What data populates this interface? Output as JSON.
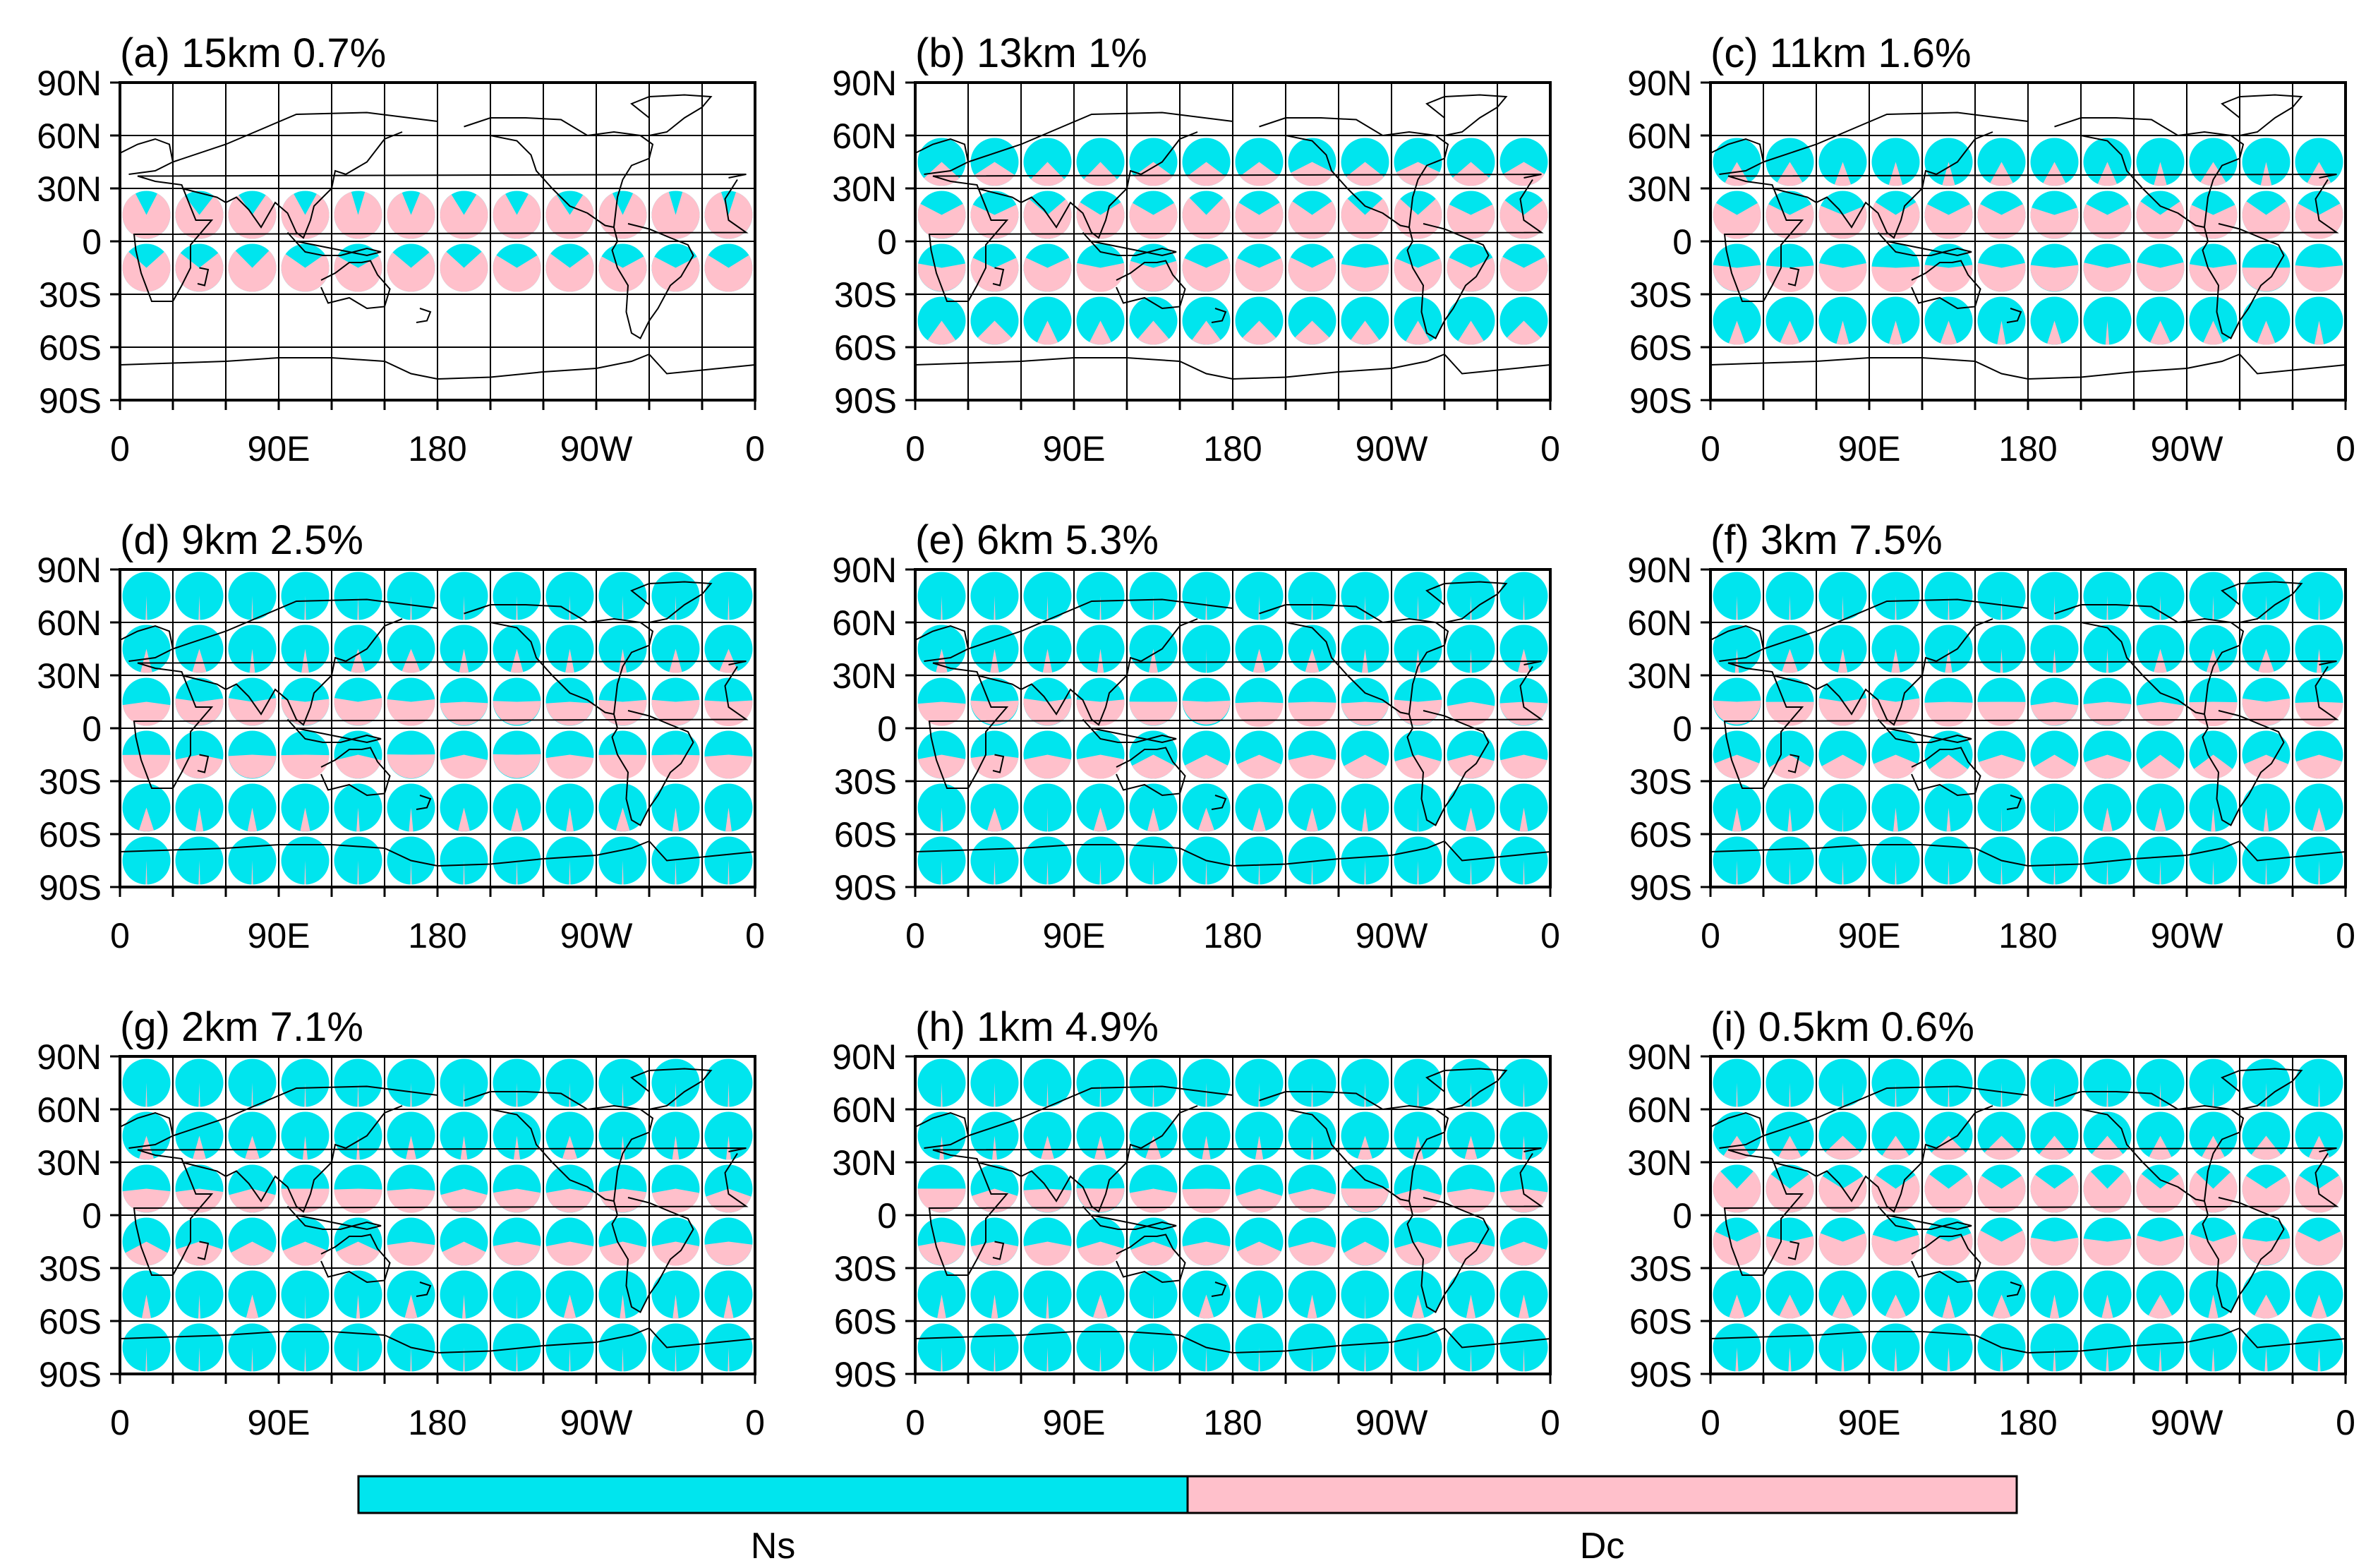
{
  "chart_data": {
    "type": "pie",
    "description_type": "grid-of-pie-charts-on-world-maps",
    "legend": [
      {
        "name": "Ns",
        "color": "#00e5ee"
      },
      {
        "name": "Dc",
        "color": "#ffc0cb"
      }
    ],
    "colors": {
      "ns": "#00e5ee",
      "dc": "#ffc0cb"
    },
    "row_centers_lat": [
      75,
      45,
      15,
      -15,
      -45,
      -75
    ],
    "col_centers_lon": [
      15,
      45,
      75,
      105,
      135,
      165,
      195,
      225,
      255,
      285,
      315,
      345
    ],
    "panels": [
      {
        "id": "a",
        "title": "(a) 15km 0.7%",
        "ylabels": [
          "90N",
          "60N",
          "30N",
          "0",
          "30S",
          "60S",
          "90S"
        ],
        "xlabels": [
          "0",
          "90E",
          "180",
          "90W",
          "0"
        ],
        "dc_fraction_rows": [
          null,
          null,
          0.85,
          0.7,
          null,
          null
        ]
      },
      {
        "id": "b",
        "title": "(b) 13km 1%",
        "ylabels": [
          "90N",
          "60N",
          "30N",
          "0",
          "30S",
          "60S",
          "90S"
        ],
        "xlabels": [
          "0",
          "90E",
          "180",
          "90W",
          "0"
        ],
        "dc_fraction_rows": [
          null,
          0.3,
          0.7,
          0.6,
          0.2,
          null
        ]
      },
      {
        "id": "c",
        "title": "(c) 11km 1.6%",
        "ylabels": [
          "90N",
          "60N",
          "30N",
          "0",
          "30S",
          "60S",
          "90S"
        ],
        "xlabels": [
          "0",
          "90E",
          "180",
          "90W",
          "0"
        ],
        "dc_fraction_rows": [
          null,
          0.12,
          0.65,
          0.55,
          0.08,
          null
        ]
      },
      {
        "id": "d",
        "title": "(d) 9km 2.5%",
        "ylabels": [
          "90N",
          "60N",
          "30N",
          "0",
          "30S",
          "60S",
          "90S"
        ],
        "xlabels": [
          "0",
          "90E",
          "180",
          "90W",
          "0"
        ],
        "dc_fraction_rows": [
          0.01,
          0.07,
          0.5,
          0.45,
          0.06,
          0.01
        ]
      },
      {
        "id": "e",
        "title": "(e) 6km 5.3%",
        "ylabels": [
          "90N",
          "60N",
          "30N",
          "0",
          "30S",
          "60S",
          "90S"
        ],
        "xlabels": [
          "0",
          "90E",
          "180",
          "90W",
          "0"
        ],
        "dc_fraction_rows": [
          0.01,
          0.05,
          0.5,
          0.4,
          0.05,
          0.01
        ]
      },
      {
        "id": "f",
        "title": "(f) 3km 7.5%",
        "ylabels": [
          "90N",
          "60N",
          "30N",
          "0",
          "30S",
          "60S",
          "90S"
        ],
        "xlabels": [
          "0",
          "90E",
          "180",
          "90W",
          "0"
        ],
        "dc_fraction_rows": [
          0.01,
          0.05,
          0.5,
          0.35,
          0.05,
          0.01
        ]
      },
      {
        "id": "g",
        "title": "(g) 2km 7.1%",
        "ylabels": [
          "90N",
          "60N",
          "30N",
          "0",
          "30S",
          "60S",
          "90S"
        ],
        "xlabels": [
          "0",
          "90E",
          "180",
          "90W",
          "0"
        ],
        "dc_fraction_rows": [
          0.01,
          0.05,
          0.45,
          0.4,
          0.05,
          0.01
        ]
      },
      {
        "id": "h",
        "title": "(h) 1km 4.9%",
        "ylabels": [
          "90N",
          "60N",
          "30N",
          "0",
          "30S",
          "60S",
          "90S"
        ],
        "xlabels": [
          "0",
          "90E",
          "180",
          "90W",
          "0"
        ],
        "dc_fraction_rows": [
          0.01,
          0.05,
          0.45,
          0.4,
          0.05,
          0.01
        ]
      },
      {
        "id": "i",
        "title": "(i) 0.5km 0.6%",
        "ylabels": [
          "90N",
          "60N",
          "30N",
          "0",
          "30S",
          "60S",
          "90S"
        ],
        "xlabels": [
          "0",
          "90E",
          "180",
          "90W",
          "0"
        ],
        "dc_fraction_rows": [
          0.01,
          0.2,
          0.7,
          0.6,
          0.12,
          0.02
        ]
      }
    ]
  }
}
